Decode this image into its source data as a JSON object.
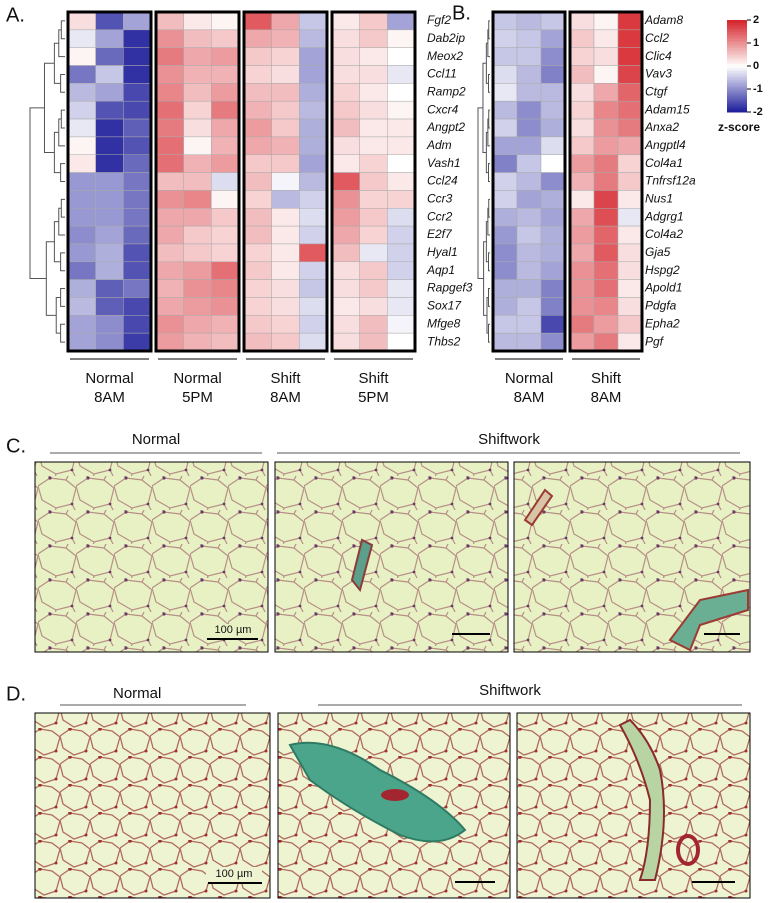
{
  "panel_a": {
    "label": "A.",
    "genes": [
      "Fgf2",
      "Dab2ip",
      "Meox2",
      "Ccl11",
      "Ramp2",
      "Cxcr4",
      "Angpt2",
      "Adm",
      "Vash1",
      "Ccl24",
      "Ccr3",
      "Ccr2",
      "E2f7",
      "Hyal1",
      "Aqp1",
      "Rapgef3",
      "Sox17",
      "Mfge8",
      "Thbs2"
    ],
    "groups": [
      [
        "Normal",
        "8AM"
      ],
      [
        "Normal",
        "5PM"
      ],
      [
        "Shift",
        "8AM"
      ],
      [
        "Shift",
        "5PM"
      ]
    ],
    "values": [
      [
        0.3,
        -1.5,
        -0.8,
        0.6,
        0.2,
        0.1,
        1.5,
        0.8,
        -0.5,
        0.2,
        0.5,
        -0.8
      ],
      [
        -0.2,
        -0.8,
        -1.8,
        1.0,
        0.6,
        0.5,
        0.8,
        0.7,
        -0.6,
        0.3,
        0.5,
        0.1
      ],
      [
        0.1,
        -1.3,
        -1.8,
        1.2,
        0.8,
        0.9,
        0.5,
        0.4,
        -0.8,
        0.3,
        0.2,
        0.0
      ],
      [
        -1.2,
        -0.5,
        -1.8,
        1.0,
        0.7,
        0.7,
        0.4,
        0.3,
        -0.8,
        0.3,
        0.3,
        -0.2
      ],
      [
        -0.6,
        -0.8,
        -1.6,
        1.1,
        0.6,
        0.9,
        0.6,
        0.6,
        -0.7,
        0.4,
        0.2,
        0.0
      ],
      [
        -0.4,
        -1.5,
        -1.6,
        1.3,
        0.4,
        1.2,
        0.7,
        0.5,
        -0.6,
        0.5,
        0.3,
        0.1
      ],
      [
        -0.2,
        -1.8,
        -1.4,
        1.2,
        0.3,
        0.8,
        0.9,
        0.5,
        -0.7,
        0.6,
        0.2,
        0.2
      ],
      [
        0.1,
        -1.8,
        -1.5,
        1.3,
        0.1,
        0.7,
        0.8,
        0.7,
        -0.7,
        0.3,
        0.2,
        0.2
      ],
      [
        0.2,
        -1.8,
        -1.3,
        1.3,
        0.7,
        0.9,
        0.5,
        0.5,
        -0.8,
        0.2,
        0.4,
        0.0
      ],
      [
        -0.9,
        -0.9,
        -1.2,
        0.6,
        0.6,
        -0.3,
        0.6,
        -0.1,
        -0.6,
        1.5,
        0.5,
        0.2
      ],
      [
        -0.9,
        -0.9,
        -1.2,
        1.0,
        1.1,
        0.1,
        0.4,
        -0.6,
        -0.4,
        1.0,
        0.4,
        0.4
      ],
      [
        -0.9,
        -0.9,
        -1.2,
        0.8,
        0.8,
        0.5,
        0.6,
        0.2,
        -0.3,
        0.9,
        0.5,
        -0.3
      ],
      [
        -1.0,
        -0.8,
        -1.3,
        0.8,
        0.5,
        0.4,
        0.6,
        0.2,
        -0.4,
        0.8,
        0.4,
        -0.4
      ],
      [
        -0.9,
        -0.7,
        -1.5,
        0.6,
        0.5,
        0.4,
        0.4,
        0.2,
        1.5,
        0.6,
        -0.2,
        -0.4
      ],
      [
        -1.2,
        -0.7,
        -1.5,
        0.8,
        0.9,
        1.3,
        0.5,
        0.2,
        -0.4,
        0.3,
        0.5,
        -0.4
      ],
      [
        -0.7,
        -1.4,
        -1.2,
        0.7,
        1.0,
        1.1,
        0.4,
        0.3,
        -0.5,
        0.3,
        0.5,
        -0.2
      ],
      [
        -0.6,
        -1.4,
        -1.6,
        0.8,
        0.9,
        1.0,
        0.4,
        0.3,
        -0.3,
        0.2,
        0.3,
        -0.2
      ],
      [
        -0.8,
        -1.0,
        -1.6,
        1.0,
        0.8,
        0.7,
        0.5,
        0.4,
        -0.4,
        0.3,
        0.6,
        -0.1
      ],
      [
        -0.8,
        -1.0,
        -1.7,
        0.9,
        0.7,
        0.6,
        0.6,
        0.5,
        -0.3,
        0.3,
        0.6,
        0.0
      ]
    ]
  },
  "panel_b": {
    "label": "B.",
    "genes": [
      "Adam8",
      "Ccl2",
      "Clic4",
      "Vav3",
      "Ctgf",
      "Adam15",
      "Anxa2",
      "Angptl4",
      "Col4a1",
      "Tnfrsf12a",
      "Nus1",
      "Adgrg1",
      "Col4a2",
      "Gja5",
      "Hspg2",
      "Apold1",
      "Pdgfa",
      "Epha2",
      "Pgf"
    ],
    "groups": [
      [
        "Normal",
        "8AM"
      ],
      [
        "Shift",
        "8AM"
      ]
    ],
    "values": [
      [
        -0.5,
        -0.6,
        -0.5,
        0.3,
        0.1,
        1.8
      ],
      [
        -0.4,
        -0.5,
        -0.8,
        0.5,
        0.2,
        1.8
      ],
      [
        -0.5,
        -0.5,
        -1.0,
        0.4,
        0.3,
        1.8
      ],
      [
        -0.3,
        -0.6,
        -1.1,
        0.6,
        0.1,
        1.7
      ],
      [
        -0.2,
        -0.6,
        -0.6,
        0.3,
        0.8,
        1.4
      ],
      [
        -0.6,
        -1.0,
        -0.6,
        0.4,
        1.1,
        1.3
      ],
      [
        -0.4,
        -1.0,
        -0.7,
        0.3,
        1.0,
        1.2
      ],
      [
        -0.8,
        -0.8,
        -0.3,
        0.5,
        0.9,
        0.8
      ],
      [
        -1.1,
        -0.5,
        0.0,
        0.9,
        1.2,
        0.4
      ],
      [
        -0.4,
        -0.6,
        -1.0,
        0.7,
        1.2,
        0.5
      ],
      [
        -0.4,
        -0.8,
        -0.7,
        0.2,
        1.7,
        0.2
      ],
      [
        -0.7,
        -0.6,
        -0.8,
        0.8,
        1.6,
        -0.2
      ],
      [
        -0.9,
        -0.5,
        -0.7,
        0.9,
        1.4,
        0.2
      ],
      [
        -1.0,
        -0.6,
        -0.7,
        0.8,
        1.5,
        0.3
      ],
      [
        -1.0,
        -0.6,
        -0.8,
        1.0,
        1.3,
        0.3
      ],
      [
        -0.7,
        -0.7,
        -1.1,
        1.0,
        1.3,
        0.2
      ],
      [
        -0.7,
        -0.5,
        -1.1,
        1.0,
        1.1,
        0.3
      ],
      [
        -0.5,
        -0.5,
        -1.6,
        1.2,
        0.9,
        0.5
      ],
      [
        -0.6,
        -0.6,
        -1.0,
        0.9,
        1.2,
        0.2
      ]
    ]
  },
  "colorbar": {
    "lim": [
      -2,
      2
    ],
    "ticks": [
      2,
      1,
      0,
      -1,
      -2
    ],
    "label": "z-score",
    "colors": [
      "#1a1a9a",
      "#ffffff",
      "#d5232a"
    ]
  },
  "panel_c": {
    "label": "C.",
    "groups": [
      "Normal",
      "Shiftwork"
    ],
    "scale_bar": "100 µm"
  },
  "panel_d": {
    "label": "D.",
    "groups": [
      "Normal",
      "Shiftwork"
    ],
    "scale_bar": "100 µm"
  }
}
